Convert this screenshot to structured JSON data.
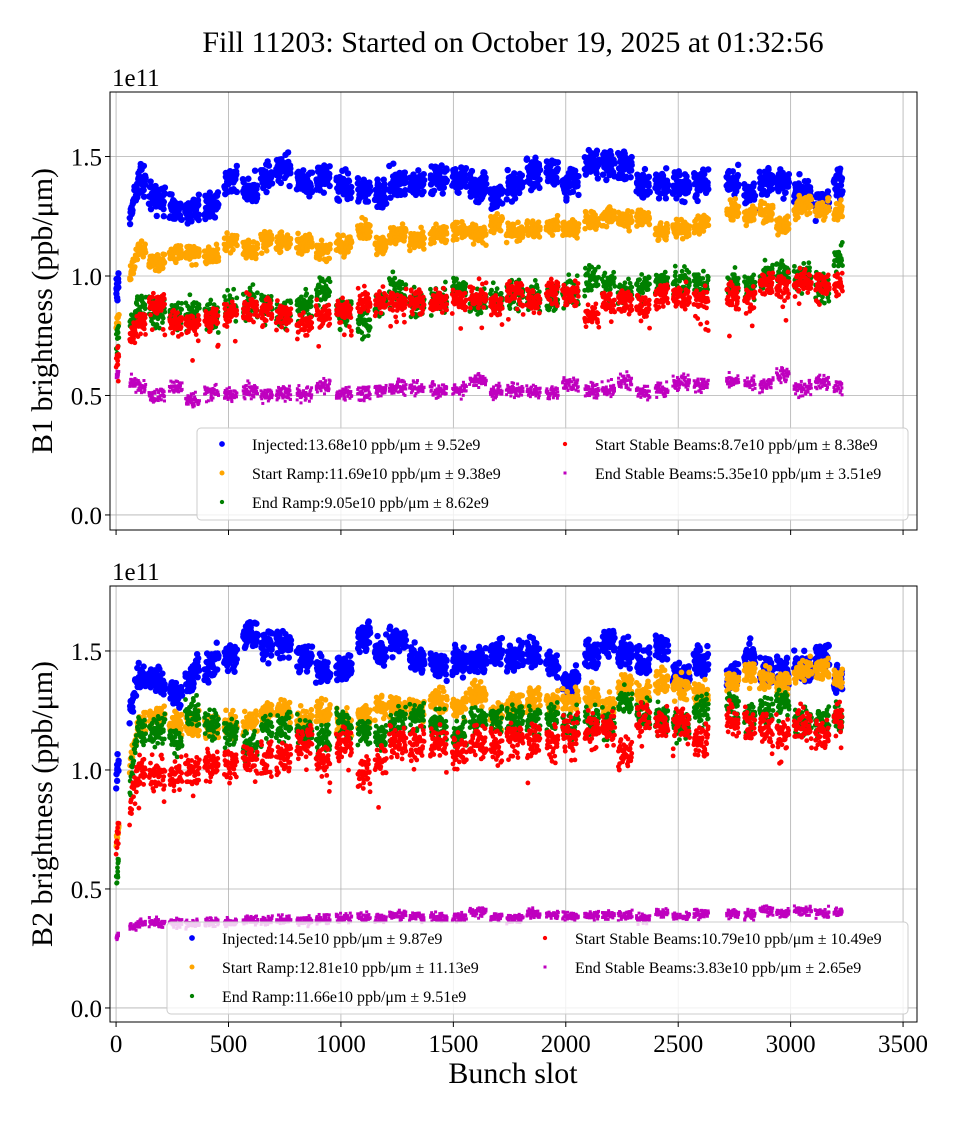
{
  "chart_data": {
    "type": "scatter",
    "title": "Fill 11203: Started on October 19, 2025 at 01:32:56",
    "xlabel": "Bunch slot",
    "xlim": [
      -27,
      3562
    ],
    "xticks": [
      0,
      500,
      1000,
      1500,
      2000,
      2500,
      3000,
      3500
    ],
    "grid": true,
    "note_fill_last_slot": 3230,
    "panels": [
      {
        "ylabel": "B1 brightness (ppb/μm)",
        "offset_text": "1e11",
        "ylim": [
          -0.063,
          1.77
        ],
        "yticks": [
          "0.0",
          "0.5",
          "1.0",
          "1.5"
        ],
        "legend_placement": "lower-right",
        "series": [
          {
            "name": "Injected",
            "legend": "Injected:13.68e10 ppb/μm ± 9.52e9",
            "color": "#0000ff",
            "marker": "circle",
            "trend": [
              [
                0,
                1.0
              ],
              [
                100,
                1.35
              ],
              [
                300,
                1.3
              ],
              [
                600,
                1.38
              ],
              [
                750,
                1.42
              ],
              [
                1000,
                1.38
              ],
              [
                1500,
                1.38
              ],
              [
                1700,
                1.4
              ],
              [
                2150,
                1.44
              ],
              [
                2500,
                1.36
              ],
              [
                2800,
                1.36
              ],
              [
                3230,
                1.4
              ]
            ],
            "spread": 0.06
          },
          {
            "name": "Start Ramp",
            "legend": "Start Ramp:11.69e10 ppb/μm ± 9.38e9",
            "color": "#ffa500",
            "marker": "circle",
            "trend": [
              [
                0,
                0.78
              ],
              [
                100,
                1.07
              ],
              [
                500,
                1.1
              ],
              [
                1000,
                1.13
              ],
              [
                1500,
                1.18
              ],
              [
                2000,
                1.2
              ],
              [
                2500,
                1.22
              ],
              [
                3000,
                1.25
              ],
              [
                3230,
                1.32
              ]
            ],
            "spread": 0.04
          },
          {
            "name": "End Ramp",
            "legend": "End Ramp:9.05e10 ppb/μm ± 8.62e9",
            "color": "#008000",
            "marker": "circle",
            "trend": [
              [
                0,
                0.7
              ],
              [
                100,
                0.88
              ],
              [
                500,
                0.86
              ],
              [
                1000,
                0.88
              ],
              [
                1500,
                0.92
              ],
              [
                2000,
                0.92
              ],
              [
                2500,
                0.95
              ],
              [
                3000,
                0.98
              ],
              [
                3230,
                1.0
              ]
            ],
            "spread": 0.06
          },
          {
            "name": "Start Stable Beams",
            "legend": "Start Stable Beams:8.7e10 ppb/μm ± 8.38e9",
            "color": "#ff0000",
            "marker": "circle",
            "trend": [
              [
                0,
                0.65
              ],
              [
                100,
                0.82
              ],
              [
                500,
                0.83
              ],
              [
                1000,
                0.85
              ],
              [
                1500,
                0.88
              ],
              [
                2000,
                0.9
              ],
              [
                2500,
                0.92
              ],
              [
                3000,
                0.95
              ],
              [
                3230,
                0.97
              ]
            ],
            "spread": 0.05
          },
          {
            "name": "End Stable Beams",
            "legend": "End Stable Beams:5.35e10 ppb/μm ± 3.51e9",
            "color": "#bf00bf",
            "marker": "square",
            "trend": [
              [
                0,
                0.58
              ],
              [
                100,
                0.51
              ],
              [
                1000,
                0.52
              ],
              [
                2000,
                0.54
              ],
              [
                3230,
                0.56
              ]
            ],
            "spread": 0.03
          }
        ]
      },
      {
        "ylabel": "B2 brightness (ppb/μm)",
        "offset_text": "1e11",
        "ylim": [
          -0.059,
          1.773
        ],
        "yticks": [
          "0.0",
          "0.5",
          "1.0",
          "1.5"
        ],
        "legend_placement": "lower-right",
        "series": [
          {
            "name": "Injected",
            "legend": "Injected:14.5e10 ppb/μm ± 9.87e9",
            "color": "#0000ff",
            "marker": "circle",
            "trend": [
              [
                0,
                1.0
              ],
              [
                100,
                1.42
              ],
              [
                300,
                1.3
              ],
              [
                500,
                1.5
              ],
              [
                800,
                1.48
              ],
              [
                1000,
                1.45
              ],
              [
                1250,
                1.54
              ],
              [
                1500,
                1.45
              ],
              [
                2000,
                1.45
              ],
              [
                2150,
                1.5
              ],
              [
                2500,
                1.46
              ],
              [
                3230,
                1.43
              ]
            ],
            "spread": 0.06
          },
          {
            "name": "Start Ramp",
            "legend": "Start Ramp:12.81e10 ppb/μm ± 11.13e9",
            "color": "#ffa500",
            "marker": "circle",
            "trend": [
              [
                0,
                0.72
              ],
              [
                100,
                1.18
              ],
              [
                500,
                1.22
              ],
              [
                1000,
                1.22
              ],
              [
                1500,
                1.25
              ],
              [
                2000,
                1.3
              ],
              [
                2500,
                1.35
              ],
              [
                3000,
                1.4
              ],
              [
                3230,
                1.42
              ]
            ],
            "spread": 0.05
          },
          {
            "name": "End Ramp",
            "legend": "End Ramp:11.66e10 ppb/μm ± 9.51e9",
            "color": "#008000",
            "marker": "circle",
            "trend": [
              [
                0,
                0.55
              ],
              [
                100,
                1.15
              ],
              [
                500,
                1.15
              ],
              [
                1000,
                1.15
              ],
              [
                1500,
                1.18
              ],
              [
                2000,
                1.22
              ],
              [
                2500,
                1.25
              ],
              [
                3000,
                1.25
              ],
              [
                3230,
                1.25
              ]
            ],
            "spread": 0.06
          },
          {
            "name": "Start Stable Beams",
            "legend": "Start Stable Beams:10.79e10 ppb/μm ± 10.49e9",
            "color": "#ff0000",
            "marker": "circle",
            "trend": [
              [
                0,
                0.62
              ],
              [
                100,
                1.0
              ],
              [
                500,
                1.02
              ],
              [
                1000,
                1.08
              ],
              [
                1500,
                1.12
              ],
              [
                2000,
                1.15
              ],
              [
                2500,
                1.17
              ],
              [
                3000,
                1.17
              ],
              [
                3230,
                1.15
              ]
            ],
            "spread": 0.07
          },
          {
            "name": "End Stable Beams",
            "legend": "End Stable Beams:3.83e10 ppb/μm ± 2.65e9",
            "color": "#bf00bf",
            "marker": "square",
            "trend": [
              [
                0,
                0.3
              ],
              [
                100,
                0.36
              ],
              [
                1000,
                0.37
              ],
              [
                2000,
                0.39
              ],
              [
                3230,
                0.4
              ]
            ],
            "spread": 0.02
          }
        ]
      }
    ]
  }
}
